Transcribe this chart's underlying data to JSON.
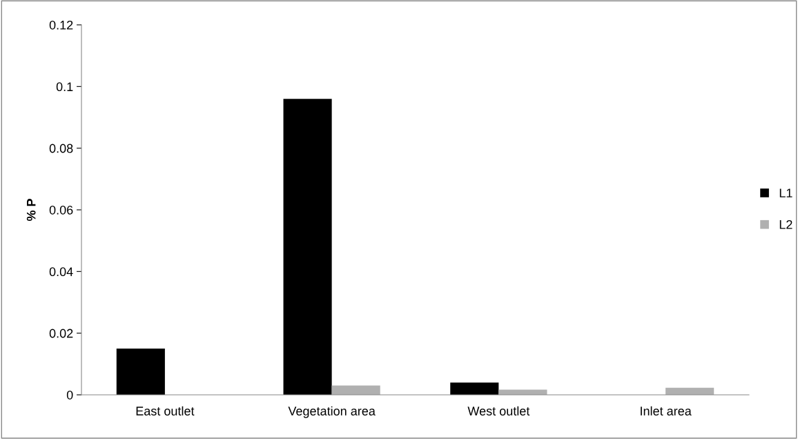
{
  "chart_data": {
    "type": "bar",
    "ylabel": "% P",
    "categories": [
      "East outlet",
      "Vegetation area",
      "West outlet",
      "Inlet area"
    ],
    "series": [
      {
        "name": "L1",
        "color": "#000000",
        "values": [
          0.015,
          0.096,
          0.004,
          0
        ]
      },
      {
        "name": "L2",
        "color": "#b0b0b0",
        "values": [
          0,
          0.003,
          0.0017,
          0.0023
        ]
      }
    ],
    "ylim": [
      0,
      0.12
    ],
    "yticks": [
      0,
      0.02,
      0.04,
      0.06,
      0.08,
      0.1,
      0.12
    ],
    "grid": false,
    "legend": "right"
  }
}
